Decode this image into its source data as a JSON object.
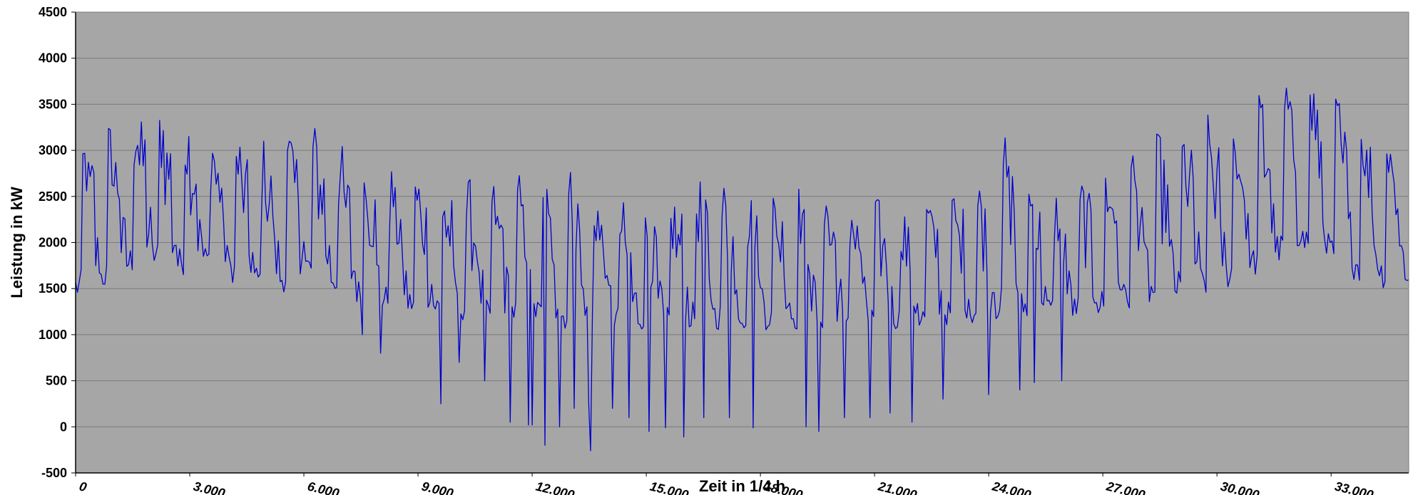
{
  "chart_data": {
    "type": "line",
    "title": "",
    "xlabel": "Zeit in 1/4 h",
    "ylabel": "Leistung in kW",
    "xlim": [
      0,
      35040
    ],
    "ylim": [
      -500,
      4500
    ],
    "y_ticks": [
      -500,
      0,
      500,
      1000,
      1500,
      2000,
      2500,
      3000,
      3500,
      4000,
      4500
    ],
    "x_ticks": [
      0,
      3000,
      6000,
      9000,
      12000,
      15000,
      18000,
      21000,
      24000,
      27000,
      30000,
      33000
    ],
    "x_tick_labels": [
      "0",
      "3.000",
      "6.000",
      "9.000",
      "12.000",
      "15.000",
      "18.000",
      "21.000",
      "24.000",
      "27.000",
      "30.000",
      "33.000"
    ],
    "grid": "horizontal",
    "plot_background": "#a6a6a6",
    "series_color": "#0000cc",
    "series": [
      {
        "x": [
          0,
          300,
          600,
          900,
          1200,
          1500,
          1800,
          2100,
          2400,
          2700,
          3000,
          3300,
          3600,
          3900,
          4200,
          4500,
          4800,
          5100,
          5400,
          5700,
          6000,
          6300,
          6600,
          6900,
          7200,
          7500,
          7800,
          8100,
          8400,
          8700,
          9000,
          9300,
          9600,
          9900,
          10200,
          10500,
          10800,
          11100,
          11400,
          11700,
          12000,
          12300,
          12600,
          12900,
          13200,
          13500,
          13800,
          14100,
          14400,
          14700,
          15000,
          15300,
          15600,
          15900,
          16200,
          16500,
          16800,
          17100,
          17400,
          17700,
          18000,
          18300,
          18600,
          18900,
          19200,
          19500,
          19800,
          20100,
          20400,
          20700,
          21000,
          21300,
          21600,
          21900,
          22200,
          22500,
          22800,
          23100,
          23400,
          23700,
          24000,
          24300,
          24600,
          24900,
          25200,
          25500,
          25800,
          26100,
          26400,
          26700,
          27000,
          27300,
          27600,
          27900,
          28200,
          28500,
          28800,
          29100,
          29400,
          29700,
          30000,
          30300,
          30600,
          30900,
          31200,
          31500,
          31800,
          32100,
          32400,
          32700,
          33000,
          33300,
          33600,
          33900,
          34200,
          34500,
          34800
        ],
        "min": [
          1350,
          1400,
          1450,
          1500,
          1550,
          1650,
          1700,
          1700,
          1650,
          1600,
          1700,
          1700,
          1650,
          1600,
          1550,
          1500,
          1450,
          1400,
          1450,
          1500,
          1600,
          1550,
          1500,
          1400,
          1350,
          1300,
          1300,
          1250,
          1250,
          1200,
          1200,
          1200,
          1150,
          1150,
          1150,
          1100,
          1100,
          1100,
          1100,
          1100,
          1100,
          1100,
          1050,
          1050,
          1050,
          1050,
          1050,
          1050,
          1050,
          1050,
          1050,
          1050,
          1050,
          1050,
          1050,
          1050,
          1050,
          1050,
          1050,
          1050,
          1050,
          1050,
          1050,
          1050,
          1050,
          1050,
          1050,
          1050,
          1050,
          1050,
          1050,
          1050,
          1050,
          1050,
          1050,
          1100,
          1100,
          1100,
          1100,
          1100,
          1150,
          1150,
          1150,
          1150,
          1150,
          1150,
          1150,
          1150,
          1150,
          1150,
          1200,
          1200,
          1250,
          1250,
          1300,
          1300,
          1350,
          1350,
          1400,
          1400,
          1450,
          1500,
          1550,
          1600,
          1650,
          1700,
          1750,
          1800,
          1850,
          1800,
          1750,
          1700,
          1600,
          1550,
          1500,
          1500,
          1500
        ],
        "max": [
          3200,
          3250,
          3300,
          3350,
          3450,
          3550,
          3650,
          3600,
          3550,
          3500,
          3400,
          3350,
          3300,
          3250,
          3200,
          3150,
          3150,
          3150,
          3200,
          3250,
          3350,
          3300,
          3200,
          3100,
          3000,
          2950,
          2900,
          2850,
          2850,
          2800,
          2800,
          2800,
          2750,
          2750,
          2700,
          2700,
          2650,
          2700,
          2850,
          2750,
          2750,
          2700,
          2700,
          2800,
          2900,
          2750,
          2600,
          2500,
          2450,
          2400,
          2350,
          2400,
          2450,
          2600,
          2750,
          2700,
          2850,
          2650,
          2600,
          2550,
          2600,
          2600,
          2650,
          2650,
          2650,
          2650,
          2650,
          2600,
          2550,
          2550,
          2500,
          2450,
          2400,
          2450,
          2500,
          2550,
          2550,
          2600,
          2650,
          2700,
          2750,
          3200,
          3300,
          2900,
          2700,
          2650,
          2600,
          2650,
          2700,
          2800,
          2900,
          3000,
          3050,
          3100,
          3150,
          3200,
          3250,
          3300,
          3350,
          3400,
          3400,
          3450,
          3500,
          3550,
          3700,
          3800,
          3900,
          3850,
          3950,
          3750,
          3650,
          3600,
          3550,
          3500,
          3450,
          3400,
          3300
        ],
        "dips": [
          [
            7550,
            1000
          ],
          [
            8000,
            800
          ],
          [
            9600,
            250
          ],
          [
            10100,
            700
          ],
          [
            10750,
            500
          ],
          [
            11400,
            50
          ],
          [
            11900,
            20
          ],
          [
            12000,
            20
          ],
          [
            12350,
            -200
          ],
          [
            12700,
            0
          ],
          [
            13100,
            200
          ],
          [
            13500,
            250
          ],
          [
            13550,
            -260
          ],
          [
            14100,
            200
          ],
          [
            14550,
            100
          ],
          [
            15050,
            -50
          ],
          [
            15500,
            -10
          ],
          [
            16000,
            -110
          ],
          [
            16500,
            100
          ],
          [
            17200,
            100
          ],
          [
            17800,
            -10
          ],
          [
            19200,
            0
          ],
          [
            19550,
            -50
          ],
          [
            20200,
            100
          ],
          [
            20900,
            100
          ],
          [
            21400,
            150
          ],
          [
            22000,
            50
          ],
          [
            22800,
            300
          ],
          [
            24000,
            350
          ],
          [
            24800,
            400
          ],
          [
            25200,
            480
          ],
          [
            25900,
            500
          ]
        ]
      }
    ]
  }
}
